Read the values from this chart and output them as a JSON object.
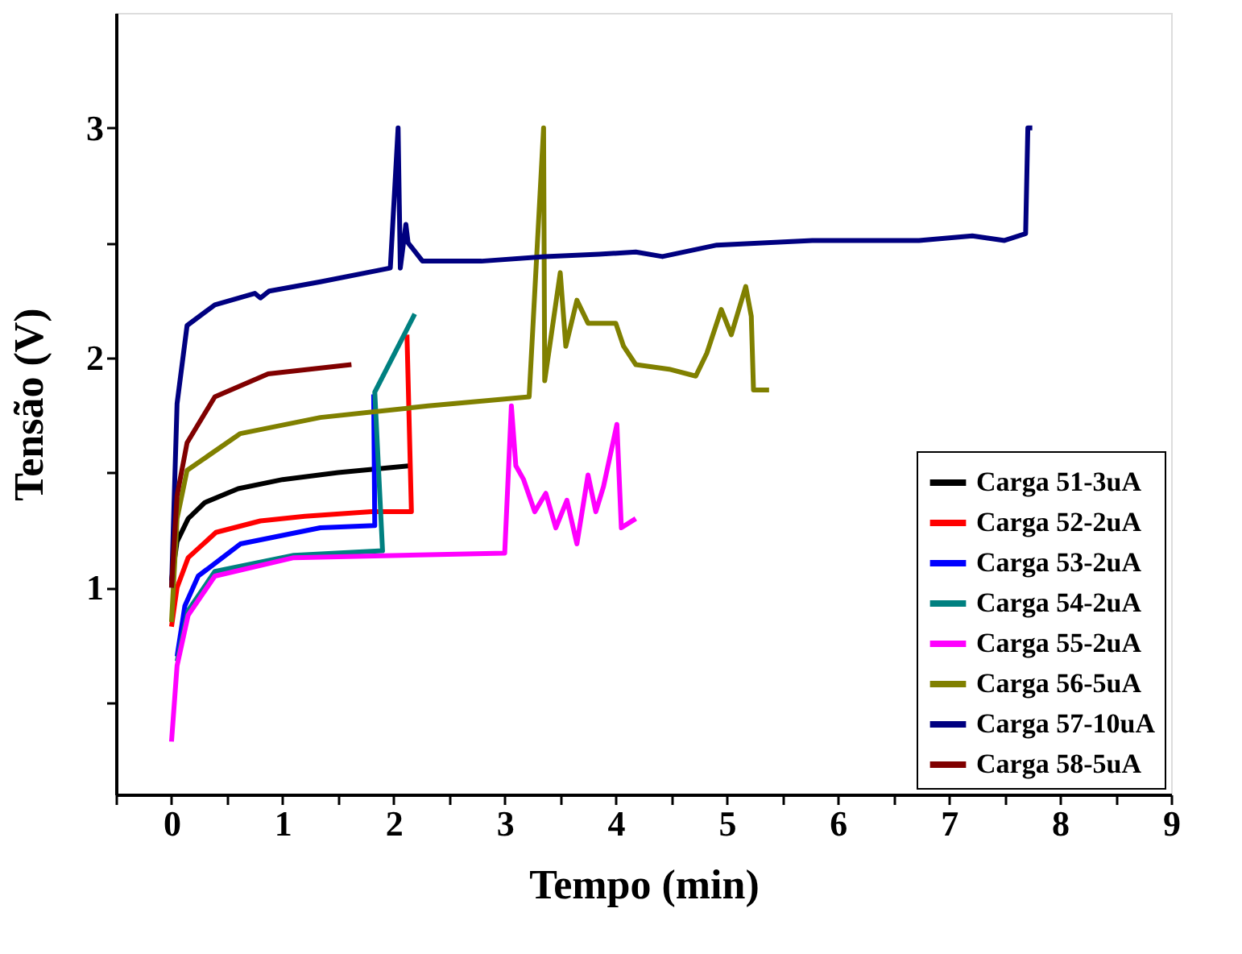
{
  "chart_data": {
    "type": "line",
    "xlabel": "Tempo (min)",
    "ylabel": "Tensão (V)",
    "xlim": [
      -0.5,
      9
    ],
    "ylim": [
      0.1,
      3.5
    ],
    "xticks": [
      {
        "value": -0.5,
        "label": null
      },
      0,
      {
        "value": 0.5,
        "label": null
      },
      1,
      {
        "value": 1.5,
        "label": null
      },
      2,
      {
        "value": 2.5,
        "label": null
      },
      3,
      {
        "value": 3.5,
        "label": null
      },
      4,
      {
        "value": 4.5,
        "label": null
      },
      5,
      {
        "value": 5.5,
        "label": null
      },
      6,
      {
        "value": 6.5,
        "label": null
      },
      7,
      {
        "value": 7.5,
        "label": null
      },
      8,
      {
        "value": 8.5,
        "label": null
      },
      9
    ],
    "yticks": [
      {
        "value": 0.5,
        "label": null
      },
      1,
      {
        "value": 1.5,
        "label": null
      },
      2,
      {
        "value": 2.5,
        "label": null
      },
      3
    ],
    "grid": false,
    "legend": "bottom right",
    "marker": "none",
    "line_style": "solid",
    "series": [
      {
        "name": "Carga 51-3uA",
        "color": "#000000",
        "x": [
          0,
          0.05,
          0.15,
          0.3,
          0.6,
          1.0,
          1.5,
          2.15
        ],
        "values": [
          1.03,
          1.2,
          1.3,
          1.37,
          1.43,
          1.47,
          1.5,
          1.53
        ]
      },
      {
        "name": "Carga 52-2uA",
        "color": "#ff0000",
        "x": [
          0,
          0.05,
          0.15,
          0.4,
          0.8,
          1.2,
          1.8,
          2.16,
          2.12
        ],
        "values": [
          0.83,
          1.0,
          1.13,
          1.24,
          1.29,
          1.31,
          1.33,
          1.33,
          2.1
        ]
      },
      {
        "name": "Carga 53-2uA",
        "color": "#0000ff",
        "x": [
          0.05,
          0.12,
          0.24,
          0.62,
          1.34,
          1.83,
          1.82
        ],
        "values": [
          0.7,
          0.92,
          1.05,
          1.19,
          1.26,
          1.27,
          1.84
        ]
      },
      {
        "name": "Carga 54-2uA",
        "color": "#008080",
        "x": [
          0.05,
          0.15,
          0.39,
          1.1,
          1.9,
          1.83,
          2.19
        ],
        "values": [
          0.68,
          0.9,
          1.07,
          1.14,
          1.16,
          1.85,
          2.19
        ]
      },
      {
        "name": "Carga 55-2uA",
        "color": "#ff00ff",
        "x": [
          0,
          0.05,
          0.15,
          0.39,
          1.1,
          3.0,
          3.06,
          3.1,
          3.17,
          3.27,
          3.37,
          3.46,
          3.56,
          3.65,
          3.75,
          3.82,
          3.89,
          4.01,
          4.05,
          4.18
        ],
        "values": [
          0.33,
          0.66,
          0.88,
          1.05,
          1.13,
          1.15,
          1.79,
          1.53,
          1.47,
          1.33,
          1.41,
          1.26,
          1.38,
          1.19,
          1.49,
          1.33,
          1.44,
          1.71,
          1.26,
          1.3
        ]
      },
      {
        "name": "Carga 56-5uA",
        "color": "#808000",
        "x": [
          0,
          0.05,
          0.14,
          0.62,
          1.34,
          2.31,
          3.22,
          3.35,
          3.36,
          3.5,
          3.55,
          3.65,
          3.75,
          4.0,
          4.07,
          4.18,
          4.48,
          4.72,
          4.82,
          4.95,
          5.04,
          5.17,
          5.22,
          5.24,
          5.38
        ],
        "values": [
          0.85,
          1.3,
          1.51,
          1.67,
          1.74,
          1.79,
          1.83,
          3.0,
          1.9,
          2.37,
          2.05,
          2.25,
          2.15,
          2.15,
          2.05,
          1.97,
          1.95,
          1.92,
          2.02,
          2.21,
          2.1,
          2.31,
          2.18,
          1.86,
          1.86
        ]
      },
      {
        "name": "Carga 57-10uA",
        "color": "#000080",
        "x": [
          0,
          0.05,
          0.14,
          0.39,
          0.75,
          0.8,
          0.88,
          1.34,
          1.97,
          2.04,
          2.06,
          2.11,
          2.13,
          2.26,
          2.79,
          3.36,
          3.85,
          4.18,
          4.42,
          4.91,
          5.77,
          6.73,
          7.21,
          7.5,
          7.69,
          7.71,
          7.75
        ],
        "values": [
          1.0,
          1.8,
          2.14,
          2.23,
          2.28,
          2.26,
          2.29,
          2.33,
          2.39,
          3.0,
          2.39,
          2.58,
          2.5,
          2.42,
          2.42,
          2.44,
          2.45,
          2.46,
          2.44,
          2.49,
          2.51,
          2.51,
          2.53,
          2.51,
          2.54,
          3.0,
          3.0
        ]
      },
      {
        "name": "Carga 58-5uA",
        "color": "#800000",
        "x": [
          0,
          0.05,
          0.14,
          0.39,
          0.87,
          1.62
        ],
        "values": [
          1.0,
          1.4,
          1.63,
          1.83,
          1.93,
          1.97
        ]
      }
    ]
  }
}
